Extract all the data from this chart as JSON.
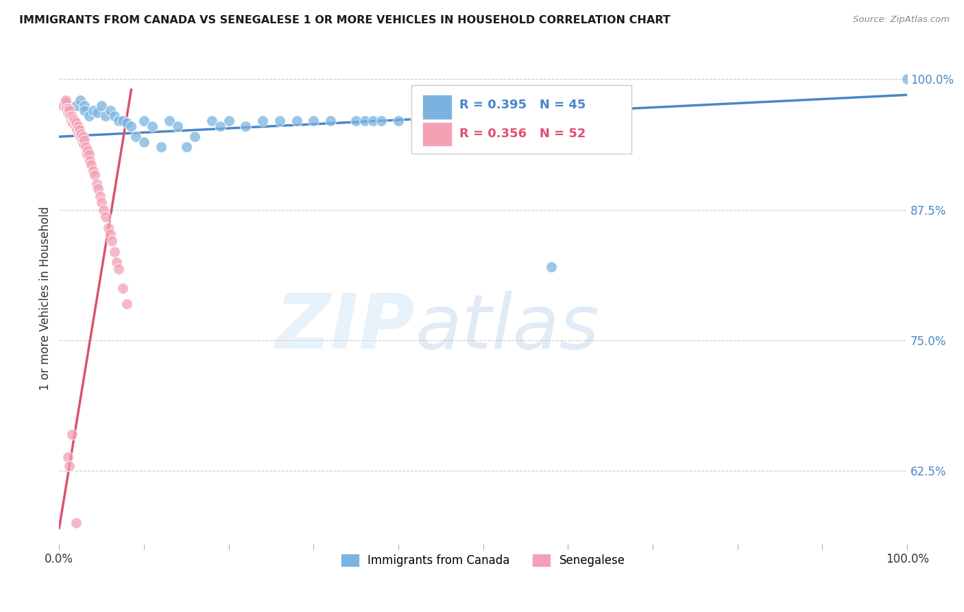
{
  "title": "IMMIGRANTS FROM CANADA VS SENEGALESE 1 OR MORE VEHICLES IN HOUSEHOLD CORRELATION CHART",
  "source": "Source: ZipAtlas.com",
  "ylabel": "1 or more Vehicles in Household",
  "xlim": [
    0.0,
    1.0
  ],
  "ylim": [
    0.555,
    1.025
  ],
  "ytick_positions": [
    0.625,
    0.75,
    0.875,
    1.0
  ],
  "ytick_labels": [
    "62.5%",
    "75.0%",
    "87.5%",
    "100.0%"
  ],
  "canada_R": 0.395,
  "canada_N": 45,
  "senegal_R": 0.356,
  "senegal_N": 52,
  "canada_color": "#7ab3e0",
  "canada_line_color": "#4a86c8",
  "senegal_color": "#f4a0b5",
  "senegal_line_color": "#d9536f",
  "legend_label_canada": "Immigrants from Canada",
  "legend_label_senegal": "Senegalese",
  "canada_x": [
    0.01,
    0.02,
    0.025,
    0.03,
    0.03,
    0.035,
    0.04,
    0.045,
    0.05,
    0.055,
    0.06,
    0.065,
    0.07,
    0.075,
    0.08,
    0.085,
    0.09,
    0.1,
    0.1,
    0.11,
    0.12,
    0.13,
    0.14,
    0.15,
    0.16,
    0.18,
    0.19,
    0.2,
    0.22,
    0.24,
    0.26,
    0.28,
    0.3,
    0.32,
    0.35,
    0.36,
    0.37,
    0.38,
    0.4,
    0.42,
    0.44,
    0.46,
    0.5,
    0.58,
    1.0
  ],
  "canada_y": [
    0.975,
    0.975,
    0.98,
    0.975,
    0.97,
    0.965,
    0.97,
    0.968,
    0.975,
    0.965,
    0.97,
    0.965,
    0.96,
    0.96,
    0.958,
    0.955,
    0.945,
    0.96,
    0.94,
    0.955,
    0.935,
    0.96,
    0.955,
    0.935,
    0.945,
    0.96,
    0.955,
    0.96,
    0.955,
    0.96,
    0.96,
    0.96,
    0.96,
    0.96,
    0.96,
    0.96,
    0.96,
    0.96,
    0.96,
    0.96,
    0.96,
    0.96,
    0.96,
    0.82,
    1.0
  ],
  "senegal_x": [
    0.005,
    0.007,
    0.008,
    0.009,
    0.01,
    0.011,
    0.012,
    0.013,
    0.014,
    0.015,
    0.016,
    0.017,
    0.018,
    0.019,
    0.02,
    0.021,
    0.022,
    0.023,
    0.024,
    0.025,
    0.026,
    0.027,
    0.028,
    0.029,
    0.03,
    0.031,
    0.032,
    0.033,
    0.034,
    0.035,
    0.036,
    0.038,
    0.04,
    0.042,
    0.044,
    0.046,
    0.048,
    0.05,
    0.052,
    0.055,
    0.058,
    0.06,
    0.062,
    0.065,
    0.068,
    0.07,
    0.075,
    0.08,
    0.01,
    0.012,
    0.015,
    0.02
  ],
  "senegal_y": [
    0.975,
    0.978,
    0.98,
    0.972,
    0.968,
    0.972,
    0.97,
    0.965,
    0.96,
    0.965,
    0.958,
    0.962,
    0.96,
    0.955,
    0.958,
    0.952,
    0.955,
    0.948,
    0.952,
    0.945,
    0.948,
    0.942,
    0.945,
    0.938,
    0.942,
    0.935,
    0.93,
    0.928,
    0.932,
    0.928,
    0.922,
    0.918,
    0.912,
    0.908,
    0.9,
    0.895,
    0.888,
    0.882,
    0.875,
    0.868,
    0.858,
    0.852,
    0.845,
    0.835,
    0.825,
    0.818,
    0.8,
    0.785,
    0.638,
    0.63,
    0.66,
    0.575
  ],
  "canada_line_x": [
    0.0,
    1.0
  ],
  "canada_line_y": [
    0.945,
    0.985
  ],
  "senegal_line_x": [
    0.0,
    0.085
  ],
  "senegal_line_y": [
    0.57,
    0.99
  ]
}
